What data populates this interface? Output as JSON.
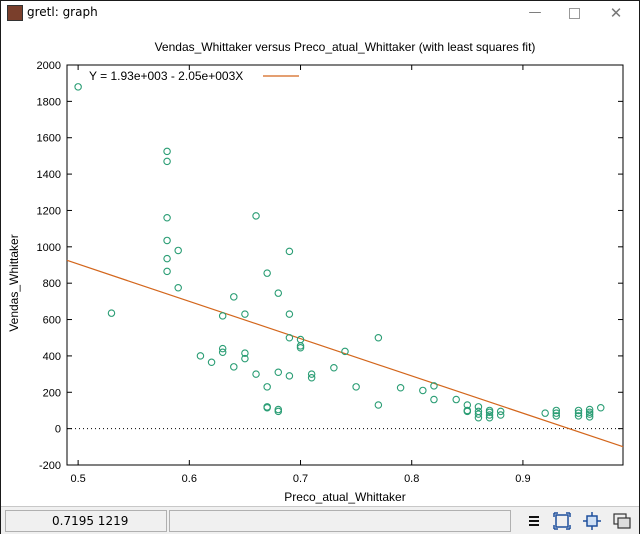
{
  "window": {
    "title": "gretl: graph",
    "minimize_icon": "minimize-icon",
    "maximize_icon": "maximize-icon",
    "close_icon": "close-icon"
  },
  "statusbar": {
    "coordinates": "0.7195 1219",
    "tools": [
      "menu-icon",
      "zoom-icon",
      "fit-icon",
      "windows-icon"
    ]
  },
  "colors": {
    "points": "#2a9d74",
    "fit_line": "#d3661c"
  },
  "chart_data": {
    "type": "scatter",
    "title": "Vendas_Whittaker versus Preco_atual_Whittaker (with least squares fit)",
    "xlabel": "Preco_atual_Whittaker",
    "ylabel": "Vendas_Whittaker",
    "xlim": [
      0.49,
      0.99
    ],
    "ylim": [
      -200,
      2000
    ],
    "xticks": [
      "0.5",
      "0.6",
      "0.7",
      "0.8",
      "0.9"
    ],
    "yticks": [
      "-200",
      "0",
      "200",
      "400",
      "600",
      "800",
      "1000",
      "1200",
      "1400",
      "1600",
      "1800",
      "2000"
    ],
    "legend": {
      "position": "top-left",
      "label": "Y = 1.93e+003 - 2.05e+003X"
    },
    "fit": {
      "intercept": 1930,
      "slope": -2050
    },
    "zero_line": true,
    "points": [
      [
        0.5,
        1880
      ],
      [
        0.53,
        635
      ],
      [
        0.58,
        1525
      ],
      [
        0.58,
        1470
      ],
      [
        0.58,
        1160
      ],
      [
        0.58,
        1035
      ],
      [
        0.58,
        935
      ],
      [
        0.58,
        865
      ],
      [
        0.59,
        980
      ],
      [
        0.59,
        775
      ],
      [
        0.61,
        400
      ],
      [
        0.62,
        365
      ],
      [
        0.63,
        620
      ],
      [
        0.63,
        440
      ],
      [
        0.63,
        420
      ],
      [
        0.64,
        725
      ],
      [
        0.64,
        340
      ],
      [
        0.65,
        630
      ],
      [
        0.65,
        415
      ],
      [
        0.65,
        385
      ],
      [
        0.66,
        1170
      ],
      [
        0.66,
        300
      ],
      [
        0.67,
        855
      ],
      [
        0.67,
        230
      ],
      [
        0.67,
        120
      ],
      [
        0.67,
        115
      ],
      [
        0.68,
        745
      ],
      [
        0.68,
        310
      ],
      [
        0.68,
        105
      ],
      [
        0.68,
        95
      ],
      [
        0.69,
        975
      ],
      [
        0.69,
        630
      ],
      [
        0.69,
        500
      ],
      [
        0.69,
        290
      ],
      [
        0.7,
        490
      ],
      [
        0.7,
        455
      ],
      [
        0.7,
        445
      ],
      [
        0.71,
        300
      ],
      [
        0.71,
        280
      ],
      [
        0.73,
        335
      ],
      [
        0.74,
        425
      ],
      [
        0.75,
        230
      ],
      [
        0.77,
        500
      ],
      [
        0.77,
        130
      ],
      [
        0.79,
        225
      ],
      [
        0.81,
        210
      ],
      [
        0.82,
        235
      ],
      [
        0.82,
        160
      ],
      [
        0.84,
        160
      ],
      [
        0.85,
        130
      ],
      [
        0.85,
        100
      ],
      [
        0.85,
        95
      ],
      [
        0.86,
        120
      ],
      [
        0.86,
        95
      ],
      [
        0.86,
        80
      ],
      [
        0.86,
        60
      ],
      [
        0.87,
        100
      ],
      [
        0.87,
        90
      ],
      [
        0.87,
        75
      ],
      [
        0.87,
        60
      ],
      [
        0.88,
        95
      ],
      [
        0.88,
        75
      ],
      [
        0.92,
        85
      ],
      [
        0.93,
        100
      ],
      [
        0.93,
        85
      ],
      [
        0.93,
        70
      ],
      [
        0.95,
        100
      ],
      [
        0.95,
        85
      ],
      [
        0.95,
        70
      ],
      [
        0.96,
        105
      ],
      [
        0.96,
        90
      ],
      [
        0.96,
        80
      ],
      [
        0.96,
        65
      ],
      [
        0.97,
        115
      ]
    ]
  }
}
